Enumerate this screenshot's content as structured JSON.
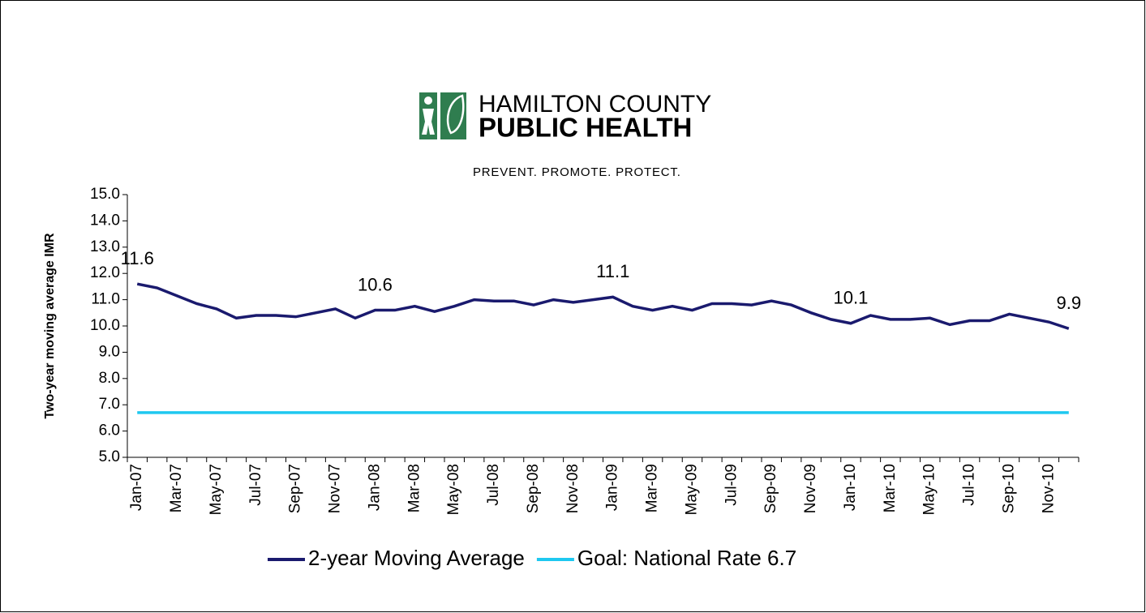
{
  "logo": {
    "line1": "HAMILTON COUNTY",
    "line2": "PUBLIC HEALTH",
    "tagline": "PREVENT. PROMOTE. PROTECT."
  },
  "chart_data": {
    "type": "line",
    "y_label": "Two-year moving average IMR",
    "categories": [
      "Jan-07",
      null,
      "Mar-07",
      null,
      "May-07",
      null,
      "Jul-07",
      null,
      "Sep-07",
      null,
      "Nov-07",
      null,
      "Jan-08",
      null,
      "Mar-08",
      null,
      "May-08",
      null,
      "Jul-08",
      null,
      "Sep-08",
      null,
      "Nov-08",
      null,
      "Jan-09",
      null,
      "Mar-09",
      null,
      "May-09",
      null,
      "Jul-09",
      null,
      "Sep-09",
      null,
      "Nov-09",
      null,
      "Jan-10",
      null,
      "Mar-10",
      null,
      "May-10",
      null,
      "Jul-10",
      null,
      "Sep-10",
      null,
      "Nov-10",
      null
    ],
    "series": [
      {
        "name": "2-year Moving Average",
        "color": "#1a1a6e",
        "values": [
          11.6,
          11.45,
          11.15,
          10.85,
          10.65,
          10.3,
          10.4,
          10.4,
          10.35,
          10.5,
          10.65,
          10.3,
          10.6,
          10.6,
          10.75,
          10.55,
          10.75,
          11.0,
          10.95,
          10.95,
          10.8,
          11.0,
          10.9,
          11.0,
          11.1,
          10.75,
          10.6,
          10.75,
          10.6,
          10.85,
          10.85,
          10.8,
          10.95,
          10.8,
          10.5,
          10.25,
          10.1,
          10.4,
          10.25,
          10.25,
          10.3,
          10.05,
          10.2,
          10.2,
          10.45,
          10.3,
          10.15,
          9.9
        ],
        "value_labels": [
          "11.6",
          null,
          null,
          null,
          null,
          null,
          null,
          null,
          null,
          null,
          null,
          null,
          "10.6",
          null,
          null,
          null,
          null,
          null,
          null,
          null,
          null,
          null,
          null,
          null,
          "11.1",
          null,
          null,
          null,
          null,
          null,
          null,
          null,
          null,
          null,
          null,
          null,
          "10.1",
          null,
          null,
          null,
          null,
          null,
          null,
          null,
          null,
          null,
          null,
          "9.9"
        ]
      },
      {
        "name": "Goal: National Rate 6.7",
        "color": "#1ec8f0",
        "values": [
          6.7,
          6.7,
          6.7,
          6.7,
          6.7,
          6.7,
          6.7,
          6.7,
          6.7,
          6.7,
          6.7,
          6.7,
          6.7,
          6.7,
          6.7,
          6.7,
          6.7,
          6.7,
          6.7,
          6.7,
          6.7,
          6.7,
          6.7,
          6.7,
          6.7,
          6.7,
          6.7,
          6.7,
          6.7,
          6.7,
          6.7,
          6.7,
          6.7,
          6.7,
          6.7,
          6.7,
          6.7,
          6.7,
          6.7,
          6.7,
          6.7,
          6.7,
          6.7,
          6.7,
          6.7,
          6.7,
          6.7,
          6.7
        ]
      }
    ],
    "ylim": [
      5,
      15
    ],
    "yticks": [
      {
        "value": 5,
        "label": "5.0"
      },
      {
        "value": 6,
        "label": "6.0"
      },
      {
        "value": 7,
        "label": "7.0"
      },
      {
        "value": 8,
        "label": "8.0"
      },
      {
        "value": 9,
        "label": "9.0"
      },
      {
        "value": 10,
        "label": "10.0"
      },
      {
        "value": 11,
        "label": "11.0"
      },
      {
        "value": 12,
        "label": "12.0"
      },
      {
        "value": 13,
        "label": "13.0"
      },
      {
        "value": 14,
        "label": "14.0"
      },
      {
        "value": 15,
        "label": "15.0"
      }
    ],
    "grid": false,
    "legend": "bottom"
  }
}
